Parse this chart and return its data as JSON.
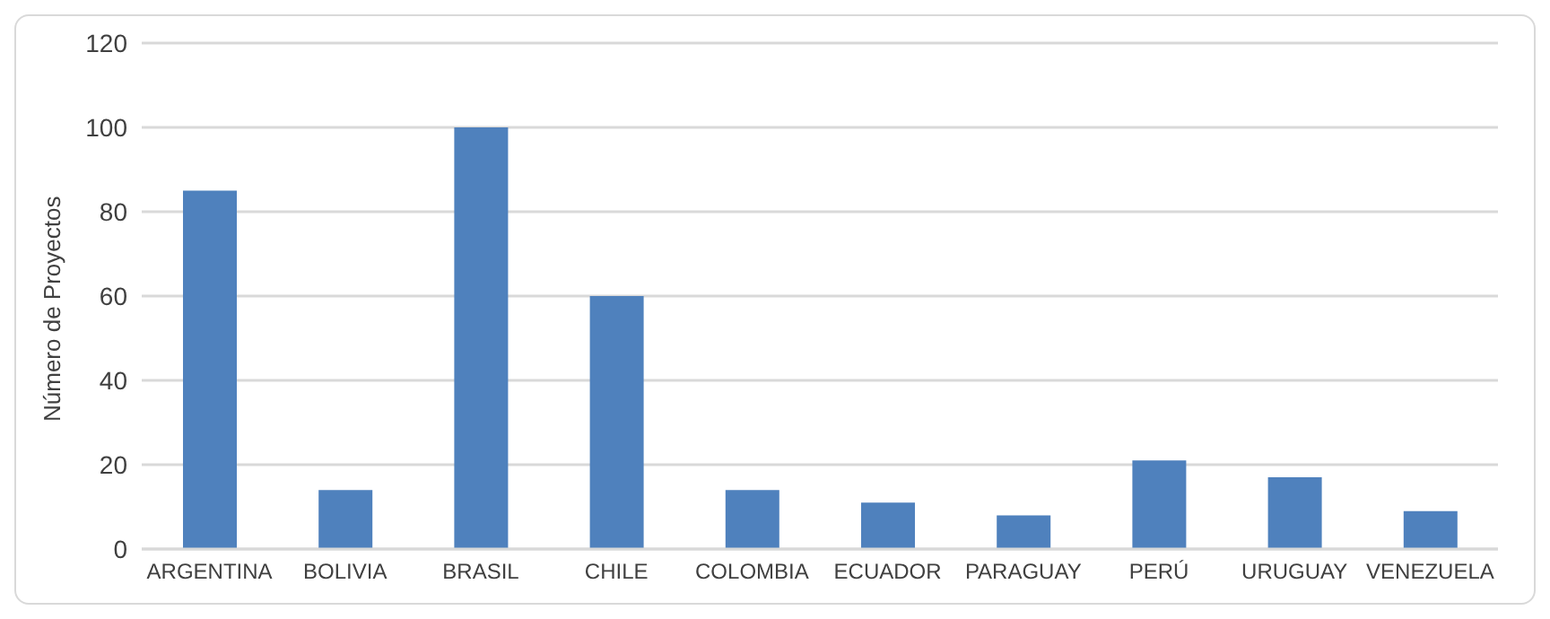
{
  "chart_data": {
    "type": "bar",
    "ylabel": "Número de Proyectos",
    "categories": [
      "ARGENTINA",
      "BOLIVIA",
      "BRASIL",
      "CHILE",
      "COLOMBIA",
      "ECUADOR",
      "PARAGUAY",
      "PERÚ",
      "URUGUAY",
      "VENEZUELA"
    ],
    "values": [
      85,
      14,
      100,
      60,
      14,
      11,
      8,
      21,
      17,
      9
    ],
    "color": "#4f81bd",
    "ylim": [
      0,
      120
    ],
    "yticks": [
      0,
      20,
      40,
      60,
      80,
      100,
      120
    ],
    "grid": "y",
    "legend": false
  }
}
